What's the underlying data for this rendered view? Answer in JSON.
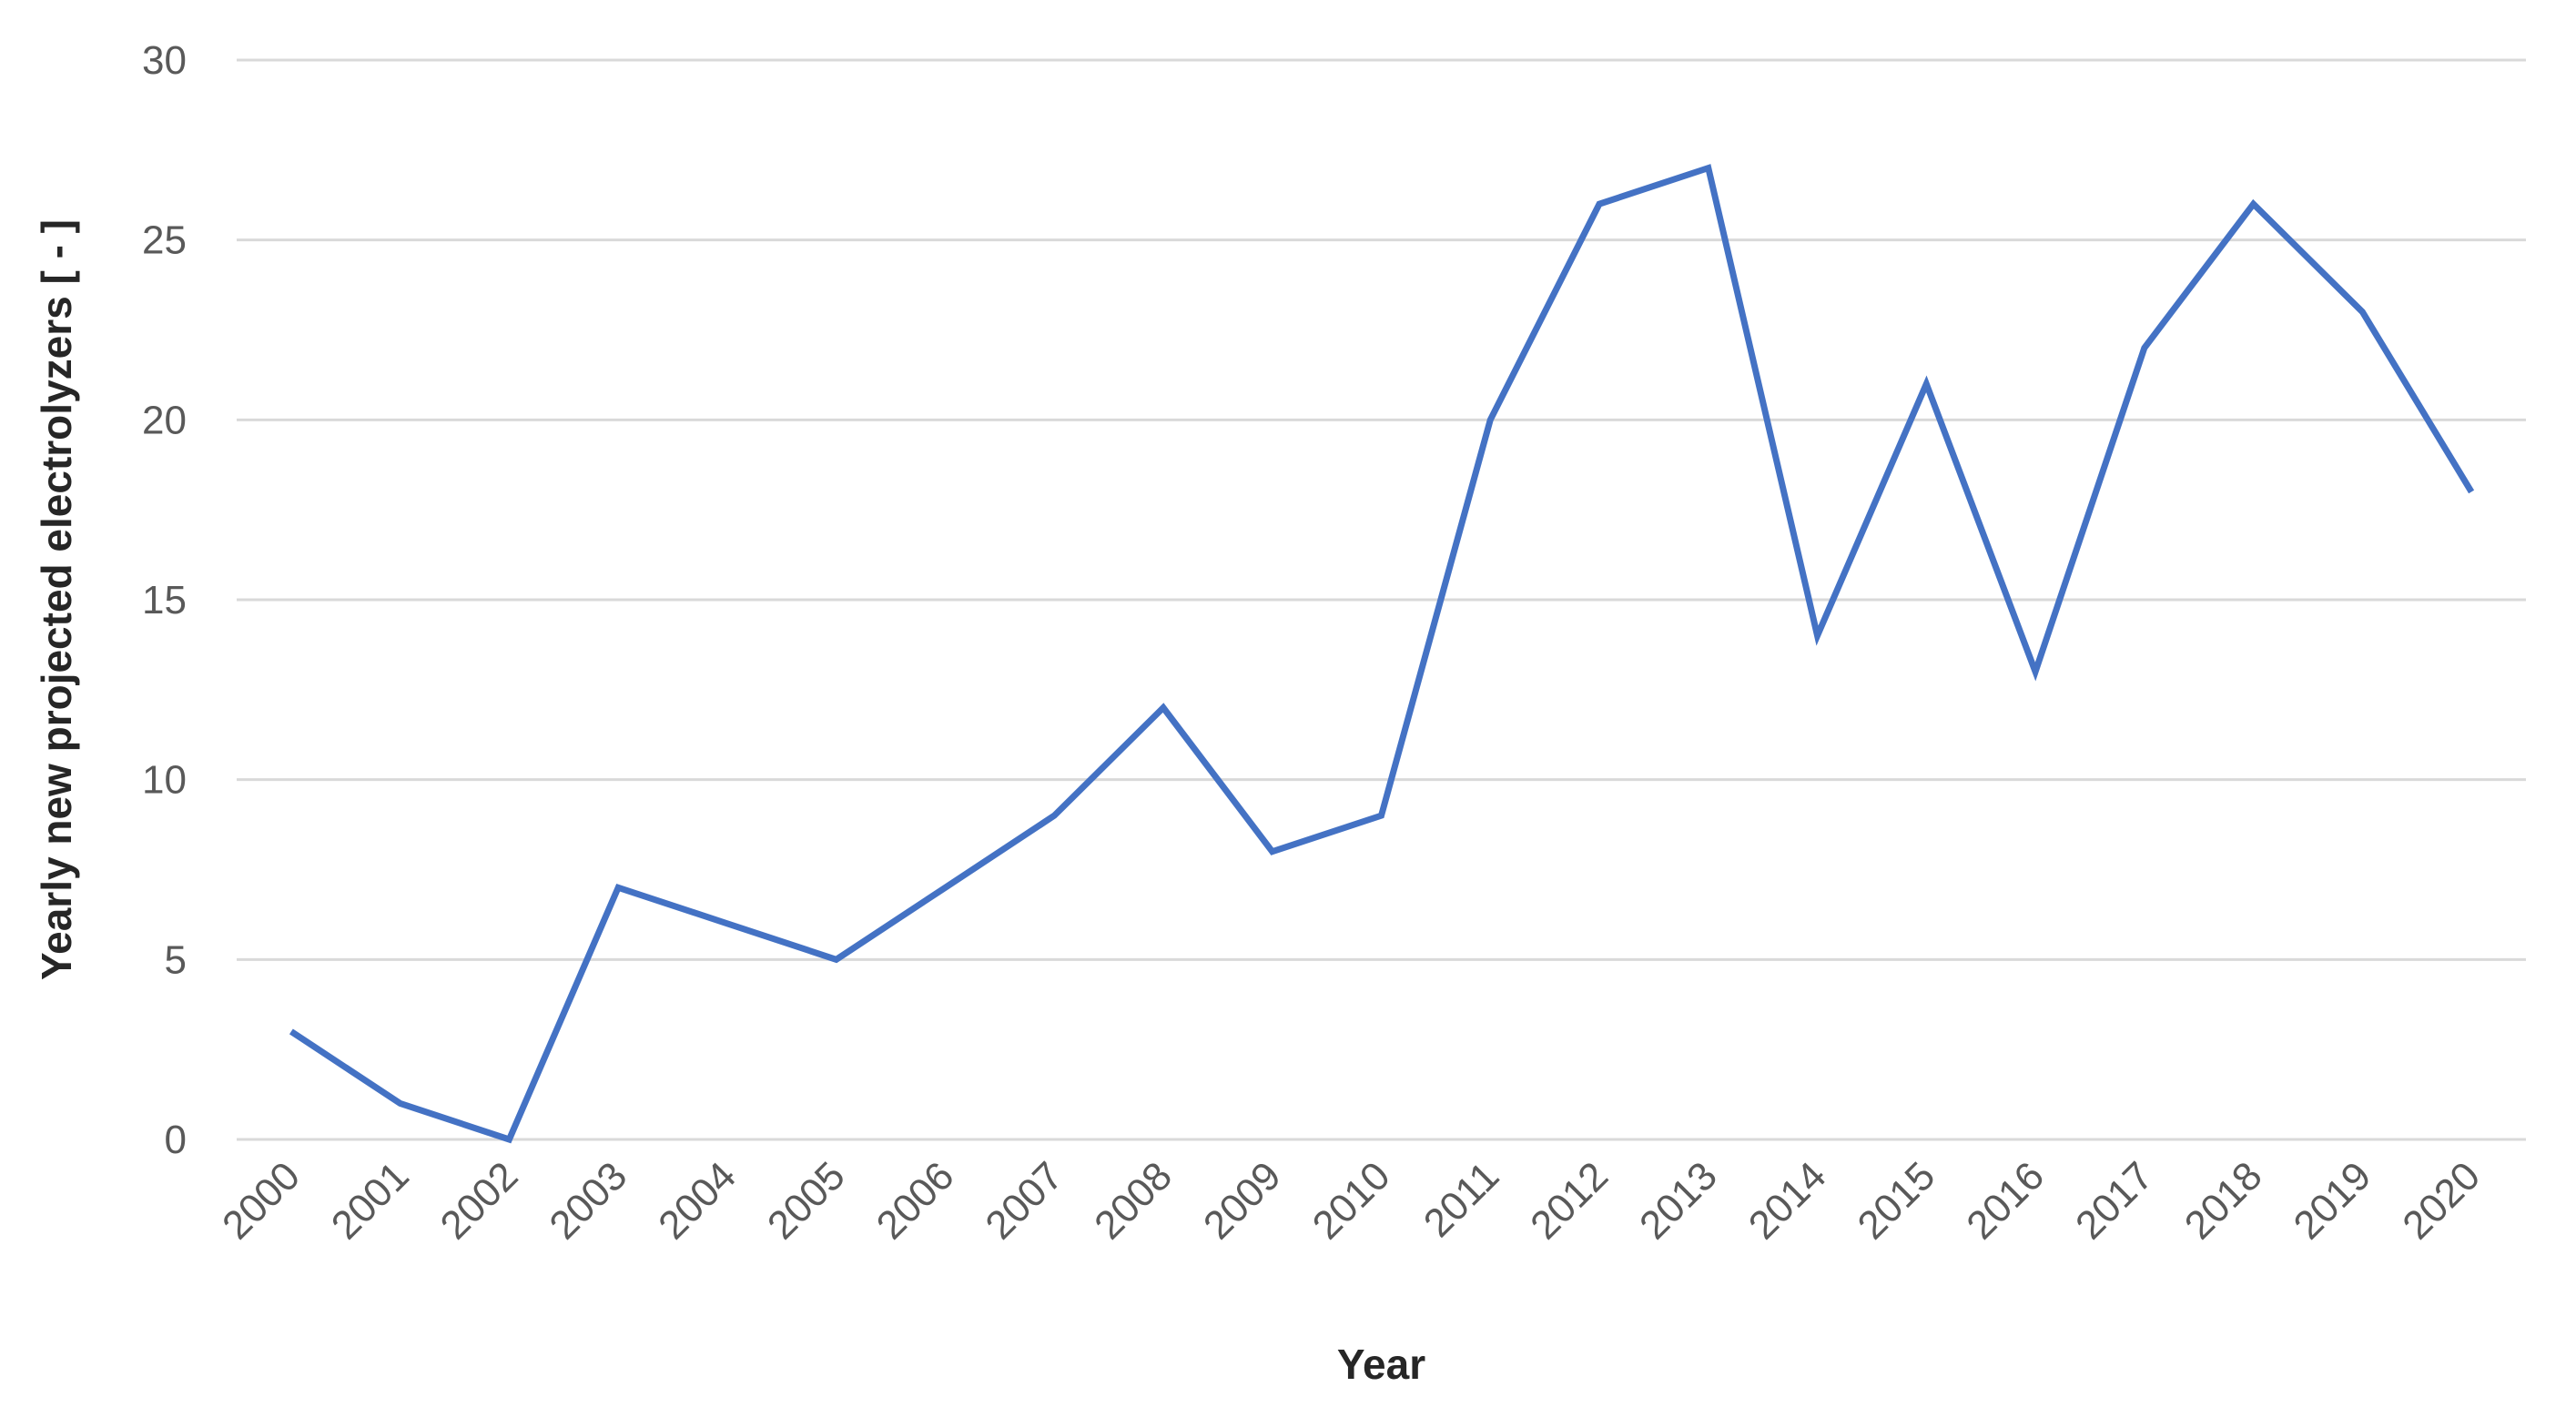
{
  "chart_data": {
    "type": "line",
    "title": "",
    "xlabel": "Year",
    "ylabel": "Yearly new projected electrolyzers [ - ]",
    "categories": [
      "2000",
      "2001",
      "2002",
      "2003",
      "2004",
      "2005",
      "2006",
      "2007",
      "2008",
      "2009",
      "2010",
      "2011",
      "2012",
      "2013",
      "2014",
      "2015",
      "2016",
      "2017",
      "2018",
      "2019",
      "2020"
    ],
    "series": [
      {
        "values": [
          3,
          1,
          0,
          7,
          6,
          5,
          7,
          9,
          12,
          8,
          9,
          20,
          26,
          27,
          14,
          21,
          13,
          22,
          26,
          23,
          18
        ],
        "color": "#4472c4"
      }
    ],
    "ylim": [
      0,
      30
    ],
    "yticks": [
      0,
      5,
      10,
      15,
      20,
      25,
      30
    ],
    "grid": true,
    "legend": "none"
  }
}
